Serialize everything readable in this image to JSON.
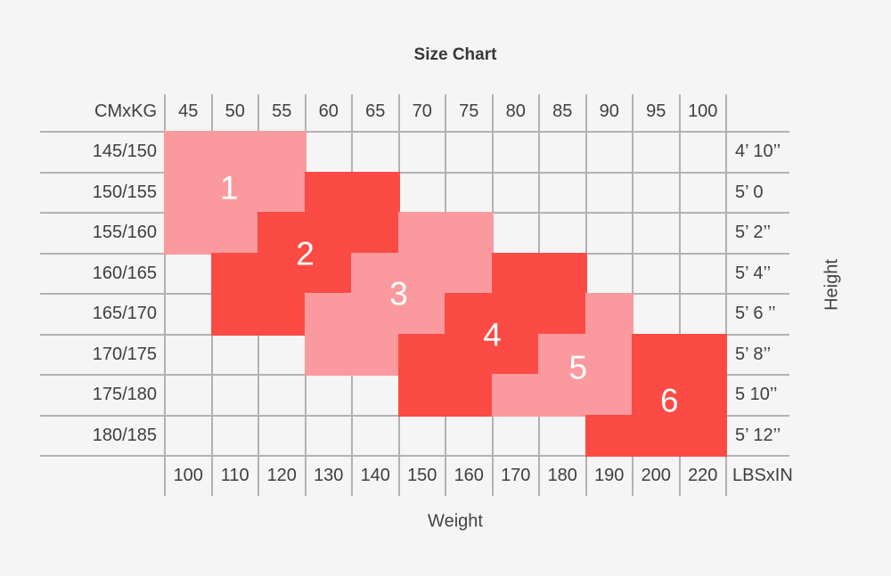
{
  "title": "Size Chart",
  "colors": {
    "pink": "#fb9a9e",
    "red": "#fb4b44",
    "grid_line": "#b2b2b2",
    "background": "#f5f5f6",
    "label_text": "#3e3e3e",
    "number_text": "#ffffff"
  },
  "chart_data": {
    "type": "heatmap",
    "title": "Size Chart",
    "x_axis_title": "Weight",
    "y_axis_title": "Height",
    "corner_label": "CMxKG",
    "unit_label": "LBSxIN",
    "kg_columns": [
      "45",
      "50",
      "55",
      "60",
      "65",
      "70",
      "75",
      "80",
      "85",
      "90",
      "95",
      "100"
    ],
    "lbs_columns": [
      "100",
      "110",
      "120",
      "130",
      "140",
      "150",
      "160",
      "170",
      "180",
      "190",
      "200",
      "220"
    ],
    "cm_rows": [
      "145/150",
      "150/155",
      "155/160",
      "160/165",
      "165/170",
      "170/175",
      "175/180",
      "180/185"
    ],
    "inch_rows": [
      "4’ 10’’",
      "5’ 0",
      "5’ 2’’",
      "5’ 4’’",
      "5’ 6 ’’",
      "5’ 8’’",
      "5 10’’",
      "5’ 12’’"
    ],
    "regions": [
      {
        "size": "1",
        "shade": "pink",
        "rows": [
          {
            "row": 0,
            "cols": [
              0,
              2
            ]
          },
          {
            "row": 1,
            "cols": [
              0,
              2
            ]
          },
          {
            "row": 2,
            "cols": [
              0,
              1
            ]
          }
        ]
      },
      {
        "size": "2",
        "shade": "red",
        "rows": [
          {
            "row": 1,
            "cols": [
              3,
              4
            ]
          },
          {
            "row": 2,
            "cols": [
              2,
              4
            ]
          },
          {
            "row": 3,
            "cols": [
              1,
              3
            ]
          },
          {
            "row": 4,
            "cols": [
              1,
              2
            ]
          }
        ]
      },
      {
        "size": "3",
        "shade": "pink",
        "rows": [
          {
            "row": 2,
            "cols": [
              5,
              6
            ]
          },
          {
            "row": 3,
            "cols": [
              4,
              6
            ]
          },
          {
            "row": 4,
            "cols": [
              3,
              5
            ]
          },
          {
            "row": 5,
            "cols": [
              3,
              4
            ]
          }
        ]
      },
      {
        "size": "4",
        "shade": "red",
        "rows": [
          {
            "row": 3,
            "cols": [
              7,
              8
            ]
          },
          {
            "row": 4,
            "cols": [
              6,
              8
            ]
          },
          {
            "row": 5,
            "cols": [
              5,
              7
            ]
          },
          {
            "row": 6,
            "cols": [
              5,
              6
            ]
          }
        ]
      },
      {
        "size": "5",
        "shade": "pink",
        "rows": [
          {
            "row": 4,
            "cols": [
              9,
              9
            ]
          },
          {
            "row": 5,
            "cols": [
              8,
              9
            ]
          },
          {
            "row": 6,
            "cols": [
              7,
              9
            ]
          }
        ]
      },
      {
        "size": "6",
        "shade": "red",
        "rows": [
          {
            "row": 5,
            "cols": [
              10,
              11
            ]
          },
          {
            "row": 6,
            "cols": [
              10,
              11
            ]
          },
          {
            "row": 7,
            "cols": [
              9,
              11
            ]
          }
        ]
      }
    ]
  }
}
